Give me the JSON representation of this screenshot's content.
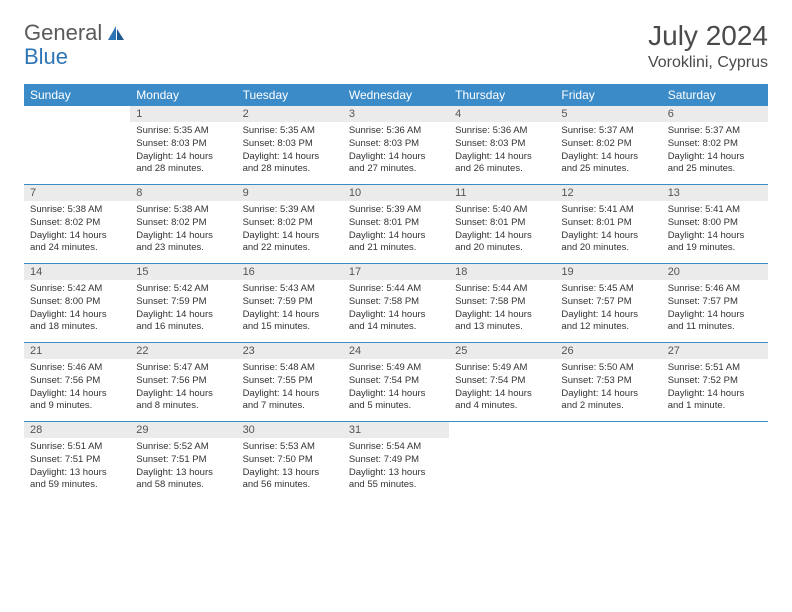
{
  "logo": {
    "text1": "General",
    "text2": "Blue"
  },
  "title": "July 2024",
  "location": "Voroklini, Cyprus",
  "colors": {
    "header_bg": "#3b8bc9",
    "header_text": "#ffffff",
    "daynum_bg": "#ebebeb",
    "border": "#3b8bc9",
    "logo_gray": "#5a5a5a",
    "logo_blue": "#2e75b6"
  },
  "daysOfWeek": [
    "Sunday",
    "Monday",
    "Tuesday",
    "Wednesday",
    "Thursday",
    "Friday",
    "Saturday"
  ],
  "weeks": [
    [
      null,
      {
        "n": "1",
        "sr": "Sunrise: 5:35 AM",
        "ss": "Sunset: 8:03 PM",
        "dl1": "Daylight: 14 hours",
        "dl2": "and 28 minutes."
      },
      {
        "n": "2",
        "sr": "Sunrise: 5:35 AM",
        "ss": "Sunset: 8:03 PM",
        "dl1": "Daylight: 14 hours",
        "dl2": "and 28 minutes."
      },
      {
        "n": "3",
        "sr": "Sunrise: 5:36 AM",
        "ss": "Sunset: 8:03 PM",
        "dl1": "Daylight: 14 hours",
        "dl2": "and 27 minutes."
      },
      {
        "n": "4",
        "sr": "Sunrise: 5:36 AM",
        "ss": "Sunset: 8:03 PM",
        "dl1": "Daylight: 14 hours",
        "dl2": "and 26 minutes."
      },
      {
        "n": "5",
        "sr": "Sunrise: 5:37 AM",
        "ss": "Sunset: 8:02 PM",
        "dl1": "Daylight: 14 hours",
        "dl2": "and 25 minutes."
      },
      {
        "n": "6",
        "sr": "Sunrise: 5:37 AM",
        "ss": "Sunset: 8:02 PM",
        "dl1": "Daylight: 14 hours",
        "dl2": "and 25 minutes."
      }
    ],
    [
      {
        "n": "7",
        "sr": "Sunrise: 5:38 AM",
        "ss": "Sunset: 8:02 PM",
        "dl1": "Daylight: 14 hours",
        "dl2": "and 24 minutes."
      },
      {
        "n": "8",
        "sr": "Sunrise: 5:38 AM",
        "ss": "Sunset: 8:02 PM",
        "dl1": "Daylight: 14 hours",
        "dl2": "and 23 minutes."
      },
      {
        "n": "9",
        "sr": "Sunrise: 5:39 AM",
        "ss": "Sunset: 8:02 PM",
        "dl1": "Daylight: 14 hours",
        "dl2": "and 22 minutes."
      },
      {
        "n": "10",
        "sr": "Sunrise: 5:39 AM",
        "ss": "Sunset: 8:01 PM",
        "dl1": "Daylight: 14 hours",
        "dl2": "and 21 minutes."
      },
      {
        "n": "11",
        "sr": "Sunrise: 5:40 AM",
        "ss": "Sunset: 8:01 PM",
        "dl1": "Daylight: 14 hours",
        "dl2": "and 20 minutes."
      },
      {
        "n": "12",
        "sr": "Sunrise: 5:41 AM",
        "ss": "Sunset: 8:01 PM",
        "dl1": "Daylight: 14 hours",
        "dl2": "and 20 minutes."
      },
      {
        "n": "13",
        "sr": "Sunrise: 5:41 AM",
        "ss": "Sunset: 8:00 PM",
        "dl1": "Daylight: 14 hours",
        "dl2": "and 19 minutes."
      }
    ],
    [
      {
        "n": "14",
        "sr": "Sunrise: 5:42 AM",
        "ss": "Sunset: 8:00 PM",
        "dl1": "Daylight: 14 hours",
        "dl2": "and 18 minutes."
      },
      {
        "n": "15",
        "sr": "Sunrise: 5:42 AM",
        "ss": "Sunset: 7:59 PM",
        "dl1": "Daylight: 14 hours",
        "dl2": "and 16 minutes."
      },
      {
        "n": "16",
        "sr": "Sunrise: 5:43 AM",
        "ss": "Sunset: 7:59 PM",
        "dl1": "Daylight: 14 hours",
        "dl2": "and 15 minutes."
      },
      {
        "n": "17",
        "sr": "Sunrise: 5:44 AM",
        "ss": "Sunset: 7:58 PM",
        "dl1": "Daylight: 14 hours",
        "dl2": "and 14 minutes."
      },
      {
        "n": "18",
        "sr": "Sunrise: 5:44 AM",
        "ss": "Sunset: 7:58 PM",
        "dl1": "Daylight: 14 hours",
        "dl2": "and 13 minutes."
      },
      {
        "n": "19",
        "sr": "Sunrise: 5:45 AM",
        "ss": "Sunset: 7:57 PM",
        "dl1": "Daylight: 14 hours",
        "dl2": "and 12 minutes."
      },
      {
        "n": "20",
        "sr": "Sunrise: 5:46 AM",
        "ss": "Sunset: 7:57 PM",
        "dl1": "Daylight: 14 hours",
        "dl2": "and 11 minutes."
      }
    ],
    [
      {
        "n": "21",
        "sr": "Sunrise: 5:46 AM",
        "ss": "Sunset: 7:56 PM",
        "dl1": "Daylight: 14 hours",
        "dl2": "and 9 minutes."
      },
      {
        "n": "22",
        "sr": "Sunrise: 5:47 AM",
        "ss": "Sunset: 7:56 PM",
        "dl1": "Daylight: 14 hours",
        "dl2": "and 8 minutes."
      },
      {
        "n": "23",
        "sr": "Sunrise: 5:48 AM",
        "ss": "Sunset: 7:55 PM",
        "dl1": "Daylight: 14 hours",
        "dl2": "and 7 minutes."
      },
      {
        "n": "24",
        "sr": "Sunrise: 5:49 AM",
        "ss": "Sunset: 7:54 PM",
        "dl1": "Daylight: 14 hours",
        "dl2": "and 5 minutes."
      },
      {
        "n": "25",
        "sr": "Sunrise: 5:49 AM",
        "ss": "Sunset: 7:54 PM",
        "dl1": "Daylight: 14 hours",
        "dl2": "and 4 minutes."
      },
      {
        "n": "26",
        "sr": "Sunrise: 5:50 AM",
        "ss": "Sunset: 7:53 PM",
        "dl1": "Daylight: 14 hours",
        "dl2": "and 2 minutes."
      },
      {
        "n": "27",
        "sr": "Sunrise: 5:51 AM",
        "ss": "Sunset: 7:52 PM",
        "dl1": "Daylight: 14 hours",
        "dl2": "and 1 minute."
      }
    ],
    [
      {
        "n": "28",
        "sr": "Sunrise: 5:51 AM",
        "ss": "Sunset: 7:51 PM",
        "dl1": "Daylight: 13 hours",
        "dl2": "and 59 minutes."
      },
      {
        "n": "29",
        "sr": "Sunrise: 5:52 AM",
        "ss": "Sunset: 7:51 PM",
        "dl1": "Daylight: 13 hours",
        "dl2": "and 58 minutes."
      },
      {
        "n": "30",
        "sr": "Sunrise: 5:53 AM",
        "ss": "Sunset: 7:50 PM",
        "dl1": "Daylight: 13 hours",
        "dl2": "and 56 minutes."
      },
      {
        "n": "31",
        "sr": "Sunrise: 5:54 AM",
        "ss": "Sunset: 7:49 PM",
        "dl1": "Daylight: 13 hours",
        "dl2": "and 55 minutes."
      },
      null,
      null,
      null
    ]
  ]
}
